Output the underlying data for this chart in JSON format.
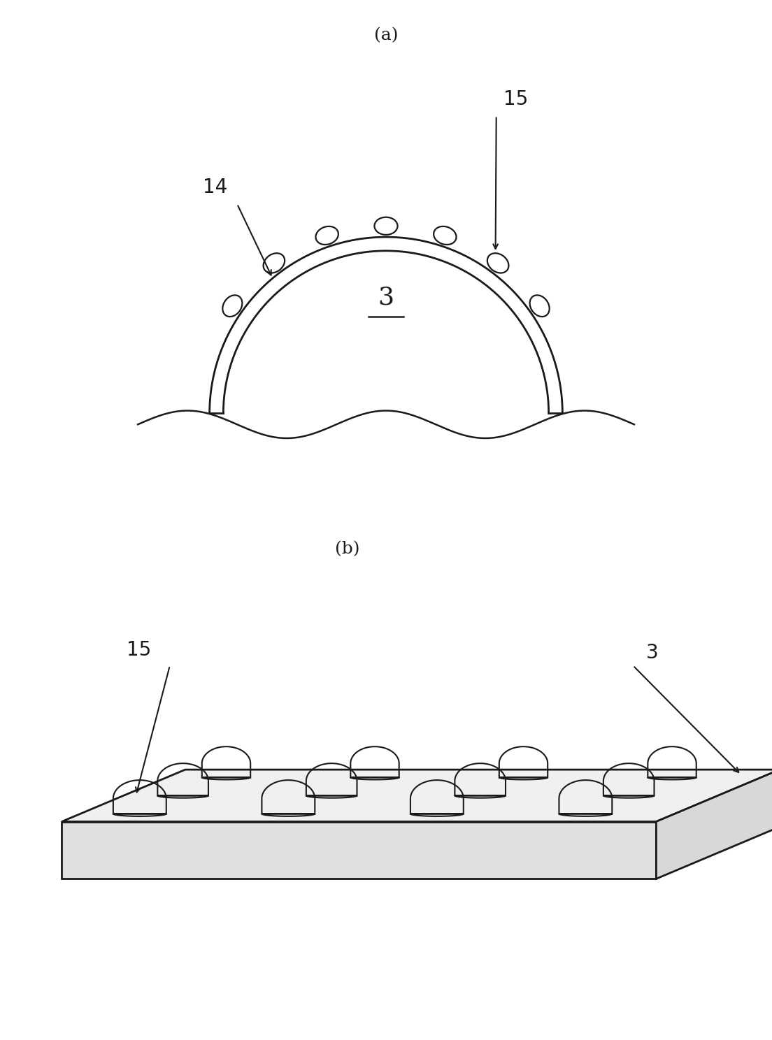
{
  "bg_color": "#ffffff",
  "line_color": "#1a1a1a",
  "fig_label_a": "(a)",
  "fig_label_b": "(b)",
  "label_3a": "3",
  "label_14": "14",
  "label_15a": "15",
  "label_3b": "3",
  "label_15b": "15",
  "font_size_label": 18,
  "font_size_number": 20
}
